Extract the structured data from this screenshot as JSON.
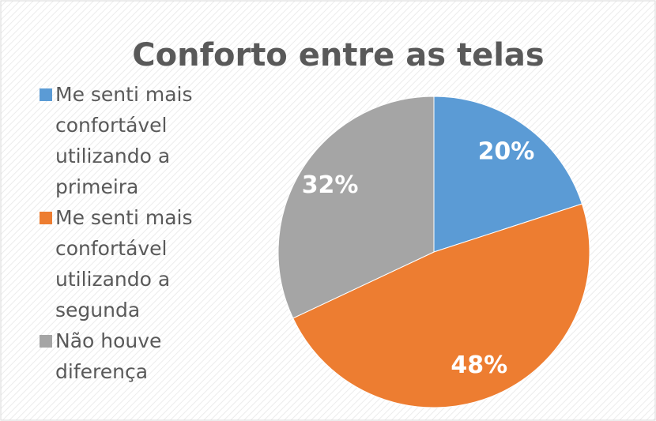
{
  "chart_data": {
    "type": "pie",
    "title": "Conforto entre as telas",
    "categories": [
      "Me senti mais confortável utilizando a primeira",
      "Me senti mais confortável utilizando a segunda",
      "Não houve diferença"
    ],
    "values": [
      20,
      48,
      32
    ],
    "value_labels": [
      "20%",
      "48%",
      "32%"
    ],
    "colors": [
      "#5b9bd5",
      "#ed7d31",
      "#a5a5a5"
    ],
    "legend": "left"
  }
}
